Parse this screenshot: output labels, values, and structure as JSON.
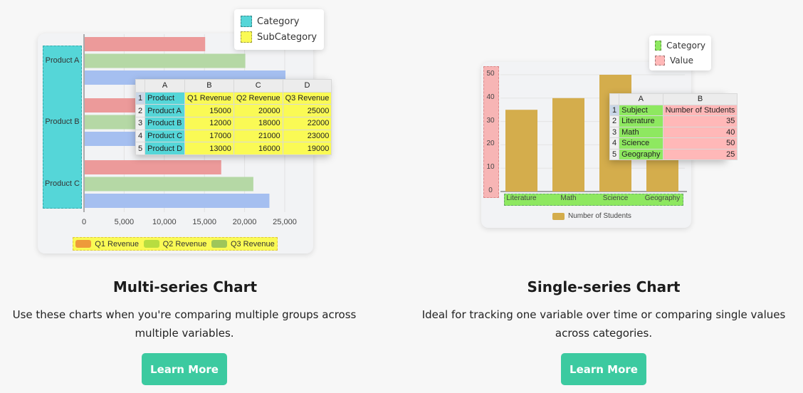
{
  "multi": {
    "title": "Multi-series Chart",
    "description_line1": "Use these charts when you're comparing multiple groups across",
    "description_line2": "multiple variables.",
    "button": "Learn More",
    "legend_card": {
      "category": "Category",
      "subcategory": "SubCategory",
      "category_color": "#55d6d8",
      "subcategory_color": "#fafa55"
    },
    "sheet": {
      "columns": [
        "A",
        "B",
        "C",
        "D"
      ],
      "rows": [
        [
          "Product",
          "Q1 Revenue",
          "Q2 Revenue",
          "Q3 Revenue"
        ],
        [
          "Product A",
          "15000",
          "20000",
          "25000"
        ],
        [
          "Product B",
          "12000",
          "18000",
          "22000"
        ],
        [
          "Product C",
          "17000",
          "21000",
          "23000"
        ],
        [
          "Product D",
          "13000",
          "16000",
          "19000"
        ]
      ]
    }
  },
  "single": {
    "title": "Single-series Chart",
    "description_line1": "Ideal for tracking one variable over time or comparing single values",
    "description_line2": "across categories.",
    "button": "Learn More",
    "legend_card": {
      "category": "Category",
      "value": "Value",
      "category_color": "#8ee860",
      "value_color": "#ffb8b8"
    },
    "sheet": {
      "columns": [
        "A",
        "B"
      ],
      "rows": [
        [
          "Subject",
          "Number of Students"
        ],
        [
          "Literature",
          "35"
        ],
        [
          "Math",
          "40"
        ],
        [
          "Science",
          "50"
        ],
        [
          "Geography",
          "25"
        ]
      ]
    }
  },
  "chart_data": [
    {
      "type": "bar",
      "orientation": "horizontal",
      "categories": [
        "Product A",
        "Product B",
        "Product C"
      ],
      "series": [
        {
          "name": "Q1 Revenue",
          "values": [
            15000,
            12000,
            17000
          ],
          "color": "#ec9a9a",
          "legend_color": "#ee9a3a"
        },
        {
          "name": "Q2 Revenue",
          "values": [
            20000,
            18000,
            21000
          ],
          "color": "#b5d8a5",
          "legend_color": "#b8dd40"
        },
        {
          "name": "Q3 Revenue",
          "values": [
            25000,
            22000,
            23000
          ],
          "color": "#a5bff0",
          "legend_color": "#9fc65a"
        }
      ],
      "xlim": [
        0,
        25000
      ],
      "xticks": [
        "0",
        "5,000",
        "10,000",
        "15,000",
        "20,000",
        "25,000"
      ],
      "grid": true,
      "legend": "bottom"
    },
    {
      "type": "bar",
      "categories": [
        "Literature",
        "Math",
        "Science",
        "Geography"
      ],
      "series": [
        {
          "name": "Number of Students",
          "values": [
            35,
            40,
            50,
            25
          ],
          "color": "#d4ad4c"
        }
      ],
      "ylim": [
        0,
        50
      ],
      "yticks": [
        "0",
        "10",
        "20",
        "30",
        "40",
        "50"
      ],
      "grid": true,
      "legend": "bottom"
    }
  ]
}
